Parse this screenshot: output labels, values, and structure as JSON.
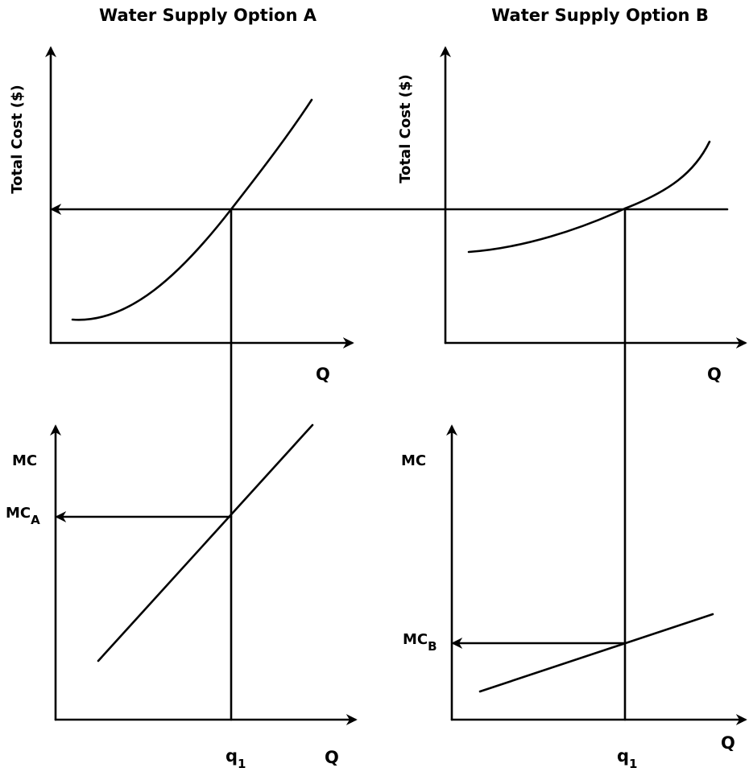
{
  "panel_a": {
    "title": "Water Supply Option A",
    "tc_axis_label": "Total Cost ($)",
    "q_label": "Q",
    "mc_axis_label": "MC",
    "mc_marker": "MC",
    "mc_marker_sub": "A",
    "q1_label": "q",
    "q1_sub": "1"
  },
  "panel_b": {
    "title": "Water Supply Option B",
    "tc_axis_label": "Total Cost ($)",
    "q_label": "Q",
    "mc_axis_label": "MC",
    "mc_marker": "MC",
    "mc_marker_sub": "B",
    "q1_label": "q",
    "q1_sub": "1"
  }
}
